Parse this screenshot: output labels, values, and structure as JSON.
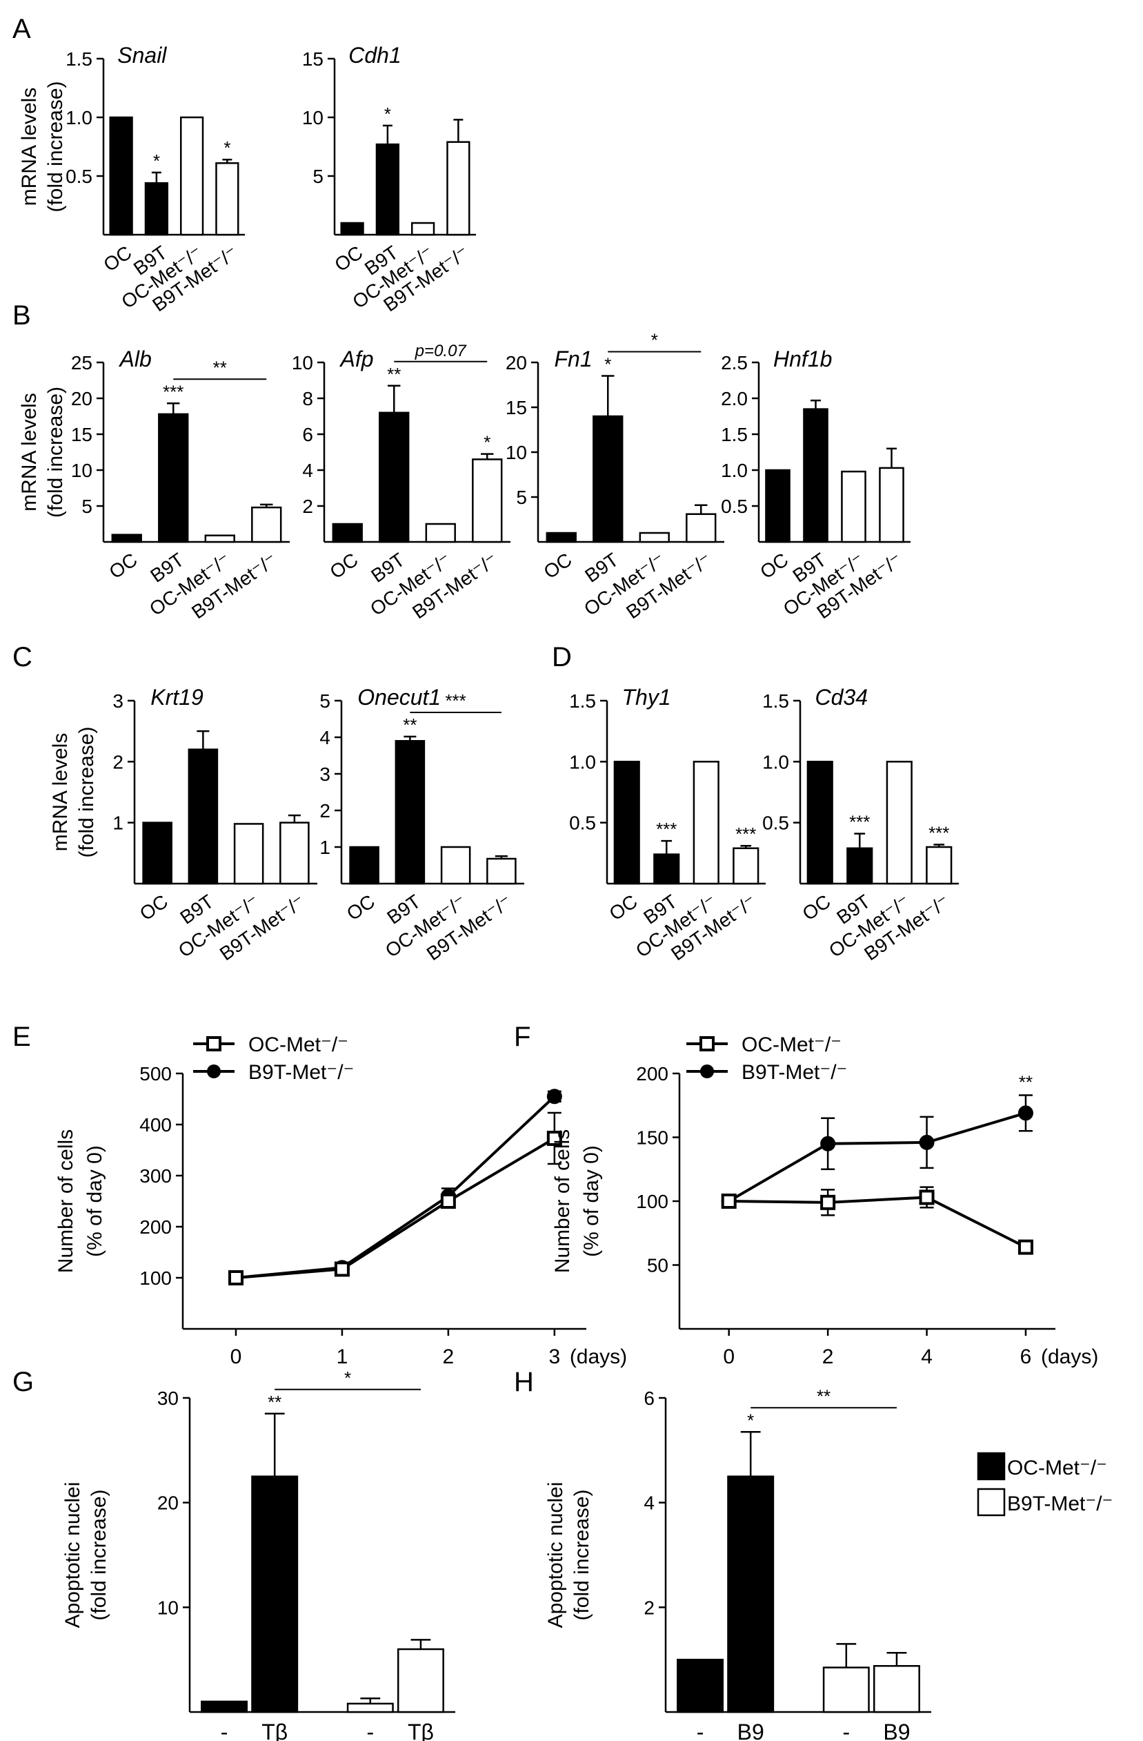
{
  "figure": {
    "groups": [
      "OC",
      "B9T",
      "OC-Met⁻/⁻",
      "B9T-Met⁻/⁻"
    ],
    "bar_legend": [
      "OC-Met⁻/⁻",
      "B9T-Met⁻/⁻"
    ],
    "colors": {
      "filled": "#000000",
      "open": "#ffffff",
      "stroke": "#000000",
      "text": "#000000"
    }
  },
  "chart_data": [
    {
      "type": "bar",
      "panel": "A",
      "title": "Snail",
      "ylabel": [
        "mRNA levels",
        "(fold increase)"
      ],
      "ylim": [
        0,
        1.5
      ],
      "ticks": [
        0.5,
        1.0,
        1.5
      ],
      "tick_labels": [
        "0.5",
        "1.0",
        "1.5"
      ],
      "categories": [
        "OC",
        "B9T",
        "OC-Met⁻/⁻",
        "B9T-Met⁻/⁻"
      ],
      "values": [
        1.0,
        0.44,
        1.0,
        0.61
      ],
      "errors": [
        0,
        0.09,
        0,
        0.03
      ],
      "fills": [
        "filled",
        "filled",
        "open",
        "open"
      ],
      "stars": [
        "",
        "*",
        "",
        "*"
      ],
      "brackets": []
    },
    {
      "type": "bar",
      "panel": "",
      "title": "Cdh1",
      "ylabel": [],
      "ylim": [
        0,
        15
      ],
      "ticks": [
        5,
        10,
        15
      ],
      "tick_labels": [
        "5",
        "10",
        "15"
      ],
      "categories": [
        "OC",
        "B9T",
        "OC-Met⁻/⁻",
        "B9T-Met⁻/⁻"
      ],
      "values": [
        1.0,
        7.7,
        1.0,
        7.9
      ],
      "errors": [
        0,
        1.6,
        0,
        1.9
      ],
      "fills": [
        "filled",
        "filled",
        "open",
        "open"
      ],
      "stars": [
        "",
        "*",
        "",
        ""
      ],
      "brackets": []
    },
    {
      "type": "bar",
      "panel": "B",
      "title": "Alb",
      "ylabel": [
        "mRNA levels",
        "(fold increase)"
      ],
      "ylim": [
        0,
        25
      ],
      "ticks": [
        5,
        10,
        15,
        20,
        25
      ],
      "tick_labels": [
        "5",
        "10",
        "15",
        "20",
        "25"
      ],
      "categories": [
        "OC",
        "B9T",
        "OC-Met⁻/⁻",
        "B9T-Met⁻/⁻"
      ],
      "values": [
        1.0,
        17.8,
        0.9,
        4.8
      ],
      "errors": [
        0,
        1.5,
        0,
        0.4
      ],
      "fills": [
        "filled",
        "filled",
        "open",
        "open"
      ],
      "stars": [
        "",
        "***",
        "",
        ""
      ],
      "brackets": [
        {
          "from": 1,
          "to": 3,
          "label": "**"
        }
      ]
    },
    {
      "type": "bar",
      "panel": "",
      "title": "Afp",
      "ylabel": [],
      "ylim": [
        0,
        10
      ],
      "ticks": [
        2,
        4,
        6,
        8,
        10
      ],
      "tick_labels": [
        "2",
        "4",
        "6",
        "8",
        "10"
      ],
      "categories": [
        "OC",
        "B9T",
        "OC-Met⁻/⁻",
        "B9T-Met⁻/⁻"
      ],
      "values": [
        1.0,
        7.2,
        1.0,
        4.6
      ],
      "errors": [
        0,
        1.5,
        0,
        0.3
      ],
      "fills": [
        "filled",
        "filled",
        "open",
        "open"
      ],
      "stars": [
        "",
        "**",
        "",
        "*"
      ],
      "brackets": [
        {
          "from": 1,
          "to": 3,
          "label": "p=0.07"
        }
      ]
    },
    {
      "type": "bar",
      "panel": "",
      "title": "Fn1",
      "ylabel": [],
      "ylim": [
        0,
        20
      ],
      "ticks": [
        5,
        10,
        15,
        20
      ],
      "tick_labels": [
        "5",
        "10",
        "15",
        "20"
      ],
      "categories": [
        "OC",
        "B9T",
        "OC-Met⁻/⁻",
        "B9T-Met⁻/⁻"
      ],
      "values": [
        1.0,
        14.0,
        1.0,
        3.1
      ],
      "errors": [
        0,
        4.5,
        0,
        1.0
      ],
      "fills": [
        "filled",
        "filled",
        "open",
        "open"
      ],
      "stars": [
        "",
        "*",
        "",
        ""
      ],
      "brackets": [
        {
          "from": 1,
          "to": 3,
          "label": "*"
        }
      ]
    },
    {
      "type": "bar",
      "panel": "",
      "title": "Hnf1b",
      "ylabel": [],
      "ylim": [
        0,
        2.5
      ],
      "ticks": [
        0.5,
        1.0,
        1.5,
        2.0,
        2.5
      ],
      "tick_labels": [
        "0.5",
        "1.0",
        "1.5",
        "2.0",
        "2.5"
      ],
      "categories": [
        "OC",
        "B9T",
        "OC-Met⁻/⁻",
        "B9T-Met⁻/⁻"
      ],
      "values": [
        1.0,
        1.85,
        0.98,
        1.03
      ],
      "errors": [
        0,
        0.12,
        0,
        0.27
      ],
      "fills": [
        "filled",
        "filled",
        "open",
        "open"
      ],
      "stars": [
        "",
        "",
        "",
        ""
      ],
      "brackets": []
    },
    {
      "type": "bar",
      "panel": "C",
      "title": "Krt19",
      "ylabel": [
        "mRNA levels",
        "(fold increase)"
      ],
      "ylim": [
        0,
        3
      ],
      "ticks": [
        1,
        2,
        3
      ],
      "tick_labels": [
        "1",
        "2",
        "3"
      ],
      "categories": [
        "OC",
        "B9T",
        "OC-Met⁻/⁻",
        "B9T-Met⁻/⁻"
      ],
      "values": [
        1.0,
        2.2,
        0.98,
        1.0
      ],
      "errors": [
        0,
        0.3,
        0,
        0.12
      ],
      "fills": [
        "filled",
        "filled",
        "open",
        "open"
      ],
      "stars": [
        "",
        "",
        "",
        ""
      ],
      "brackets": []
    },
    {
      "type": "bar",
      "panel": "",
      "title": "Onecut1",
      "ylabel": [],
      "ylim": [
        0,
        5
      ],
      "ticks": [
        1,
        2,
        3,
        4,
        5
      ],
      "tick_labels": [
        "1",
        "2",
        "3",
        "4",
        "5"
      ],
      "categories": [
        "OC",
        "B9T",
        "OC-Met⁻/⁻",
        "B9T-Met⁻/⁻"
      ],
      "values": [
        1.0,
        3.9,
        1.0,
        0.68
      ],
      "errors": [
        0,
        0.12,
        0,
        0.07
      ],
      "fills": [
        "filled",
        "filled",
        "open",
        "open"
      ],
      "stars": [
        "",
        "**",
        "",
        ""
      ],
      "brackets": [
        {
          "from": 1,
          "to": 3,
          "label": "***"
        }
      ]
    },
    {
      "type": "bar",
      "panel": "D",
      "title": "Thy1",
      "ylabel": [],
      "ylim": [
        0,
        1.5
      ],
      "ticks": [
        0.5,
        1.0,
        1.5
      ],
      "tick_labels": [
        "0.5",
        "1.0",
        "1.5"
      ],
      "categories": [
        "OC",
        "B9T",
        "OC-Met⁻/⁻",
        "B9T-Met⁻/⁻"
      ],
      "values": [
        1.0,
        0.24,
        1.0,
        0.29
      ],
      "errors": [
        0,
        0.11,
        0,
        0.02
      ],
      "fills": [
        "filled",
        "filled",
        "open",
        "open"
      ],
      "stars": [
        "",
        "***",
        "",
        "***"
      ],
      "brackets": []
    },
    {
      "type": "bar",
      "panel": "",
      "title": "Cd34",
      "ylabel": [],
      "ylim": [
        0,
        1.5
      ],
      "ticks": [
        0.5,
        1.0,
        1.5
      ],
      "tick_labels": [
        "0.5",
        "1.0",
        "1.5"
      ],
      "categories": [
        "OC",
        "B9T",
        "OC-Met⁻/⁻",
        "B9T-Met⁻/⁻"
      ],
      "values": [
        1.0,
        0.29,
        1.0,
        0.3
      ],
      "errors": [
        0,
        0.12,
        0,
        0.02
      ],
      "fills": [
        "filled",
        "filled",
        "open",
        "open"
      ],
      "stars": [
        "",
        "***",
        "",
        "***"
      ],
      "brackets": []
    },
    {
      "type": "line",
      "panel": "E",
      "ylabel": [
        "Number of cells",
        "(% of day 0)"
      ],
      "ylim": [
        0,
        500
      ],
      "ticks": [
        100,
        200,
        300,
        400,
        500
      ],
      "tick_labels": [
        "100",
        "200",
        "300",
        "400",
        "500"
      ],
      "xlim": [
        -0.5,
        3.3
      ],
      "x": [
        0,
        1,
        2,
        3
      ],
      "x_tick_labels": [
        "0",
        "1",
        "2",
        "3"
      ],
      "x_unit": "(days)",
      "series": [
        {
          "name": "OC-Met⁻/⁻",
          "marker": "open-square",
          "values": [
            100,
            117,
            250,
            373
          ],
          "errors": [
            0,
            0,
            10,
            50
          ]
        },
        {
          "name": "B9T-Met⁻/⁻",
          "marker": "filled-circle",
          "values": [
            100,
            120,
            260,
            455
          ],
          "errors": [
            0,
            0,
            15,
            10
          ]
        }
      ],
      "stars": []
    },
    {
      "type": "line",
      "panel": "F",
      "ylabel": [
        "Number of cells",
        "(% of day 0)"
      ],
      "ylim": [
        0,
        200
      ],
      "ticks": [
        50,
        100,
        150,
        200
      ],
      "tick_labels": [
        "50",
        "100",
        "150",
        "200"
      ],
      "xlim": [
        -1,
        6.6
      ],
      "x": [
        0,
        2,
        4,
        6
      ],
      "x_tick_labels": [
        "0",
        "2",
        "4",
        "6"
      ],
      "x_unit": "(days)",
      "series": [
        {
          "name": "OC-Met⁻/⁻",
          "marker": "open-square",
          "values": [
            100,
            99,
            103,
            64
          ],
          "errors": [
            0,
            10,
            8,
            0
          ]
        },
        {
          "name": "B9T-Met⁻/⁻",
          "marker": "filled-circle",
          "values": [
            100,
            145,
            146,
            169
          ],
          "errors": [
            0,
            20,
            20,
            14
          ]
        }
      ],
      "stars": [
        {
          "x": 6,
          "label": "**"
        }
      ]
    },
    {
      "type": "bar",
      "panel": "G",
      "ylabel": [
        "Apoptotic nuclei",
        "(fold increase)"
      ],
      "ylim": [
        0,
        30
      ],
      "ticks": [
        10,
        20,
        30
      ],
      "tick_labels": [
        "10",
        "20",
        "30"
      ],
      "categories": [
        "-",
        "Tβ",
        "-",
        "Tβ"
      ],
      "values": [
        1.0,
        22.5,
        0.8,
        6.0
      ],
      "errors": [
        0,
        6.0,
        0.5,
        0.9
      ],
      "fills": [
        "filled",
        "filled",
        "open",
        "open"
      ],
      "stars": [
        "",
        "**",
        "",
        ""
      ],
      "brackets": [
        {
          "from": 1,
          "to": 3,
          "label": "*"
        }
      ]
    },
    {
      "type": "bar",
      "panel": "H",
      "ylabel": [
        "Apoptotic nuclei",
        "(fold increase)"
      ],
      "ylim": [
        0,
        6
      ],
      "ticks": [
        2,
        4,
        6
      ],
      "tick_labels": [
        "2",
        "4",
        "6"
      ],
      "categories": [
        "-",
        "B9",
        "-",
        "B9"
      ],
      "values": [
        1.0,
        4.5,
        0.85,
        0.88
      ],
      "errors": [
        0,
        0.85,
        0.45,
        0.25
      ],
      "fills": [
        "filled",
        "filled",
        "open",
        "open"
      ],
      "stars": [
        "",
        "*",
        "",
        ""
      ],
      "brackets": [
        {
          "from": 1,
          "to": 3,
          "label": "**"
        }
      ]
    }
  ]
}
